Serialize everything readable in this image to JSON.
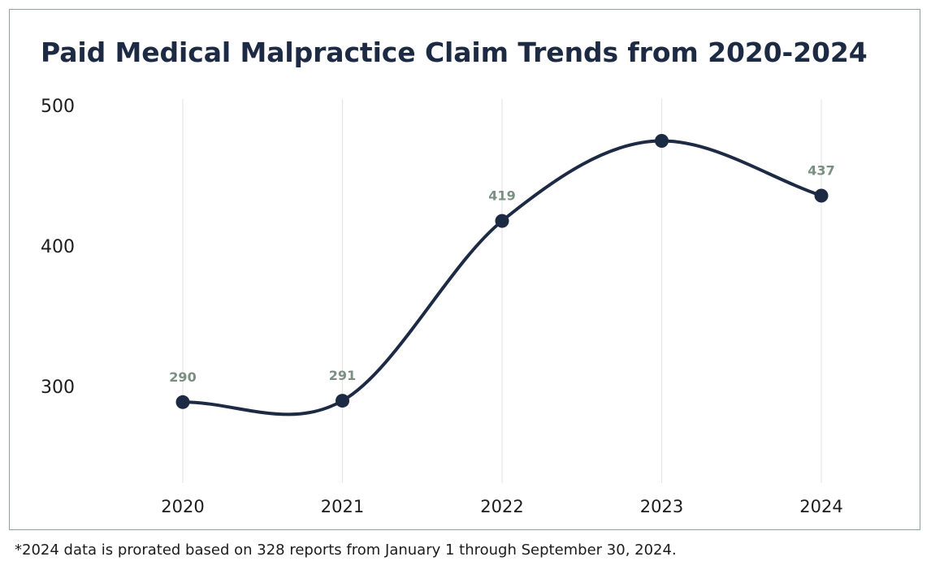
{
  "chart_data": {
    "type": "line",
    "title": "Paid Medical Malpractice Claim Trends from 2020-2024",
    "categories": [
      "2020",
      "2021",
      "2022",
      "2023",
      "2024"
    ],
    "series": [
      {
        "values": [
          290,
          291,
          419,
          476,
          437
        ],
        "data_labels": [
          "290",
          "291",
          "419",
          "",
          "437"
        ]
      }
    ],
    "ylim": [
      230,
      500
    ],
    "yticks": [
      300,
      400,
      500
    ],
    "ytick_labels": [
      "300",
      "400",
      "500"
    ],
    "grid": "vertical",
    "smooth": true,
    "colors": {
      "line": "#1c2a44",
      "marker": "#1c2a44",
      "data_label": "#7a8f82",
      "grid": "#e5e5e5",
      "frame": "#8fa297",
      "title": "#1c2a44"
    }
  },
  "footnote": "*2024 data is prorated based on 328 reports from January 1 through September 30, 2024."
}
